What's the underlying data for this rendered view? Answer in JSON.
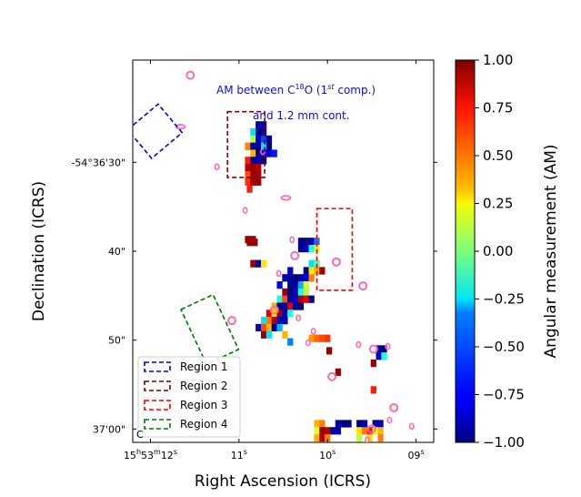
{
  "chart_data": {
    "type": "heatmap",
    "title": "",
    "xlabel": "Right Ascension (ICRS)",
    "ylabel": "Declination (ICRS)",
    "x_ticks": [
      {
        "text": "15h53m12s",
        "sup1": "h",
        "sup2": "m",
        "sup3": "s",
        "pre": "15",
        "m": "53",
        "s": "12",
        "sec": 12
      },
      {
        "text": "11s",
        "pre": "11",
        "sec": 11
      },
      {
        "text": "10s",
        "pre": "10",
        "sec": 10
      },
      {
        "text": "09s",
        "pre": "09",
        "sec": 9
      }
    ],
    "y_ticks": [
      {
        "text": "-54°36'30\"",
        "dec_sec": 30
      },
      {
        "text": "40\"",
        "dec_sec": 40
      },
      {
        "text": "50\"",
        "dec_sec": 50
      },
      {
        "text": "37'00\"",
        "dec_sec": 60
      }
    ],
    "xlim_sec": [
      12.2,
      8.8
    ],
    "ylim_decsec": [
      18.5,
      61.5
    ],
    "colorbar": {
      "label": "Angular measurement (AM)",
      "range": [
        -1.0,
        1.0
      ],
      "ticks": [
        "1.00",
        "0.75",
        "0.50",
        "0.25",
        "0.00",
        "−0.25",
        "−0.50",
        "−0.75",
        "−1.00"
      ],
      "colormap": "jet"
    },
    "annotation": {
      "line1_prefix": "AM between C",
      "line1_sup": "18",
      "line1_mid": "O (1",
      "line1_sup2": "st",
      "line1_suffix": " comp.)",
      "line2": "and 1.2 mm cont."
    },
    "legend": {
      "position": "lower-left",
      "entries": [
        {
          "label": "Region 1",
          "color": "#0000dd"
        },
        {
          "label": "Region 2",
          "color": "#800000"
        },
        {
          "label": "Region 3",
          "color": "#ee0000"
        },
        {
          "label": "Region 4",
          "color": "#007700"
        }
      ]
    },
    "beam_label": "C",
    "pixels": [
      {
        "ra": 10.78,
        "dec": 25.8,
        "am": -0.9
      },
      {
        "ra": 10.72,
        "dec": 25.8,
        "am": -0.95
      },
      {
        "ra": 10.84,
        "dec": 26.6,
        "am": -0.3
      },
      {
        "ra": 10.78,
        "dec": 26.6,
        "am": -1.0
      },
      {
        "ra": 10.72,
        "dec": 26.6,
        "am": -0.9
      },
      {
        "ra": 10.84,
        "dec": 27.4,
        "am": 0.1
      },
      {
        "ra": 10.78,
        "dec": 27.4,
        "am": -0.85
      },
      {
        "ra": 10.72,
        "dec": 27.4,
        "am": -0.6
      },
      {
        "ra": 10.66,
        "dec": 27.4,
        "am": -0.95
      },
      {
        "ra": 10.9,
        "dec": 28.2,
        "am": 0.5
      },
      {
        "ra": 10.84,
        "dec": 28.2,
        "am": -0.9
      },
      {
        "ra": 10.78,
        "dec": 28.2,
        "am": -0.95
      },
      {
        "ra": 10.72,
        "dec": 28.2,
        "am": -0.3
      },
      {
        "ra": 10.66,
        "dec": 28.2,
        "am": -1.0
      },
      {
        "ra": 10.84,
        "dec": 29.0,
        "am": 0.4
      },
      {
        "ra": 10.78,
        "dec": 29.0,
        "am": -1.0
      },
      {
        "ra": 10.72,
        "dec": 29.0,
        "am": -0.8
      },
      {
        "ra": 10.66,
        "dec": 29.0,
        "am": -0.85
      },
      {
        "ra": 10.6,
        "dec": 29.0,
        "am": -0.7
      },
      {
        "ra": 10.9,
        "dec": 29.8,
        "am": 0.7
      },
      {
        "ra": 10.84,
        "dec": 29.8,
        "am": -0.95
      },
      {
        "ra": 10.78,
        "dec": 29.8,
        "am": -0.9
      },
      {
        "ra": 10.72,
        "dec": 29.8,
        "am": -1.0
      },
      {
        "ra": 10.9,
        "dec": 30.6,
        "am": 0.9
      },
      {
        "ra": 10.84,
        "dec": 30.6,
        "am": 0.95
      },
      {
        "ra": 10.78,
        "dec": 30.6,
        "am": 0.9
      },
      {
        "ra": 10.9,
        "dec": 31.4,
        "am": 0.6
      },
      {
        "ra": 10.84,
        "dec": 31.4,
        "am": 0.95
      },
      {
        "ra": 10.78,
        "dec": 31.4,
        "am": 0.92
      },
      {
        "ra": 10.9,
        "dec": 32.2,
        "am": 0.65
      },
      {
        "ra": 10.9,
        "dec": 38.7,
        "am": 0.95
      },
      {
        "ra": 10.84,
        "dec": 38.7,
        "am": 0.95
      },
      {
        "ra": 10.3,
        "dec": 38.9,
        "am": -0.95
      },
      {
        "ra": 10.24,
        "dec": 38.9,
        "am": -1.0
      },
      {
        "ra": 10.18,
        "dec": 38.9,
        "am": -0.9
      },
      {
        "ra": 10.12,
        "dec": 38.9,
        "am": -0.5
      },
      {
        "ra": 10.3,
        "dec": 39.7,
        "am": -1.0
      },
      {
        "ra": 10.24,
        "dec": 39.7,
        "am": -0.85
      },
      {
        "ra": 10.18,
        "dec": 39.7,
        "am": -0.2
      },
      {
        "ra": 10.12,
        "dec": 39.7,
        "am": 0.2
      },
      {
        "ra": 10.84,
        "dec": 41.4,
        "am": 0.95
      },
      {
        "ra": 10.78,
        "dec": 41.4,
        "am": -0.9
      },
      {
        "ra": 10.72,
        "dec": 41.4,
        "am": 0.3
      },
      {
        "ra": 10.18,
        "dec": 41.4,
        "am": -0.3
      },
      {
        "ra": 10.12,
        "dec": 41.4,
        "am": -0.1
      },
      {
        "ra": 10.42,
        "dec": 42.2,
        "am": -0.85
      },
      {
        "ra": 10.24,
        "dec": 42.2,
        "am": -1.0
      },
      {
        "ra": 10.18,
        "dec": 42.2,
        "am": 0.3
      },
      {
        "ra": 10.12,
        "dec": 42.2,
        "am": 0.4
      },
      {
        "ra": 10.06,
        "dec": 42.2,
        "am": 0.95
      },
      {
        "ra": 10.48,
        "dec": 43.0,
        "am": -0.9
      },
      {
        "ra": 10.42,
        "dec": 43.0,
        "am": -0.95
      },
      {
        "ra": 10.36,
        "dec": 43.0,
        "am": -1.0
      },
      {
        "ra": 10.3,
        "dec": 43.0,
        "am": -0.95
      },
      {
        "ra": 10.24,
        "dec": 43.0,
        "am": -0.8
      },
      {
        "ra": 10.18,
        "dec": 43.0,
        "am": 0.5
      },
      {
        "ra": 10.54,
        "dec": 43.8,
        "am": -0.8
      },
      {
        "ra": 10.42,
        "dec": 43.8,
        "am": -1.0
      },
      {
        "ra": 10.36,
        "dec": 43.8,
        "am": -0.95
      },
      {
        "ra": 10.3,
        "dec": 43.8,
        "am": -0.4
      },
      {
        "ra": 10.24,
        "dec": 43.8,
        "am": 0.2
      },
      {
        "ra": 10.48,
        "dec": 44.6,
        "am": 0.95
      },
      {
        "ra": 10.42,
        "dec": 44.6,
        "am": -1.0
      },
      {
        "ra": 10.36,
        "dec": 44.6,
        "am": -0.9
      },
      {
        "ra": 10.3,
        "dec": 44.6,
        "am": -0.2
      },
      {
        "ra": 10.24,
        "dec": 44.6,
        "am": 0.1
      },
      {
        "ra": 10.54,
        "dec": 45.4,
        "am": -0.2
      },
      {
        "ra": 10.48,
        "dec": 45.4,
        "am": 0.6
      },
      {
        "ra": 10.42,
        "dec": 45.4,
        "am": -0.95
      },
      {
        "ra": 10.36,
        "dec": 45.4,
        "am": -0.85
      },
      {
        "ra": 10.3,
        "dec": 45.4,
        "am": 0.9
      },
      {
        "ra": 10.24,
        "dec": 45.4,
        "am": 0.8
      },
      {
        "ra": 10.18,
        "dec": 45.4,
        "am": -0.95
      },
      {
        "ra": 10.6,
        "dec": 46.2,
        "am": 0.4
      },
      {
        "ra": 10.54,
        "dec": 46.2,
        "am": -1.0
      },
      {
        "ra": 10.48,
        "dec": 46.2,
        "am": -0.9
      },
      {
        "ra": 10.42,
        "dec": 46.2,
        "am": 0.8
      },
      {
        "ra": 10.36,
        "dec": 46.2,
        "am": -0.95
      },
      {
        "ra": 10.3,
        "dec": 46.2,
        "am": -1.0
      },
      {
        "ra": 10.66,
        "dec": 47.0,
        "am": 0.8
      },
      {
        "ra": 10.6,
        "dec": 47.0,
        "am": 0.3
      },
      {
        "ra": 10.54,
        "dec": 47.0,
        "am": 0.95
      },
      {
        "ra": 10.48,
        "dec": 47.0,
        "am": -0.9
      },
      {
        "ra": 10.42,
        "dec": 47.0,
        "am": -0.2
      },
      {
        "ra": 10.72,
        "dec": 47.8,
        "am": -0.3
      },
      {
        "ra": 10.66,
        "dec": 47.8,
        "am": 0.5
      },
      {
        "ra": 10.6,
        "dec": 47.8,
        "am": 0.9
      },
      {
        "ra": 10.54,
        "dec": 47.8,
        "am": -0.85
      },
      {
        "ra": 10.48,
        "dec": 47.8,
        "am": -0.9
      },
      {
        "ra": 10.78,
        "dec": 48.6,
        "am": -0.9
      },
      {
        "ra": 10.72,
        "dec": 48.6,
        "am": 0.6
      },
      {
        "ra": 10.66,
        "dec": 48.6,
        "am": 0.4
      },
      {
        "ra": 10.6,
        "dec": 48.6,
        "am": -0.95
      },
      {
        "ra": 10.54,
        "dec": 48.6,
        "am": -0.4
      },
      {
        "ra": 10.72,
        "dec": 49.4,
        "am": 0.95
      },
      {
        "ra": 10.66,
        "dec": 49.4,
        "am": -0.3
      },
      {
        "ra": 10.48,
        "dec": 49.4,
        "am": 0.4
      },
      {
        "ra": 10.18,
        "dec": 49.8,
        "am": 0.45
      },
      {
        "ra": 10.12,
        "dec": 49.8,
        "am": 0.55
      },
      {
        "ra": 10.06,
        "dec": 49.8,
        "am": 0.6
      },
      {
        "ra": 10.0,
        "dec": 49.8,
        "am": 0.65
      },
      {
        "ra": 10.42,
        "dec": 50.2,
        "am": -0.5
      },
      {
        "ra": 9.98,
        "dec": 51.2,
        "am": 0.95
      },
      {
        "ra": 9.42,
        "dec": 51.0,
        "am": -0.95
      },
      {
        "ra": 9.36,
        "dec": 51.0,
        "am": -1.0
      },
      {
        "ra": 9.42,
        "dec": 51.8,
        "am": -0.9
      },
      {
        "ra": 9.36,
        "dec": 51.8,
        "am": -0.2
      },
      {
        "ra": 9.48,
        "dec": 52.6,
        "am": 0.95
      },
      {
        "ra": 9.48,
        "dec": 55.6,
        "am": 0.7
      },
      {
        "ra": 10.12,
        "dec": 59.4,
        "am": 0.4
      },
      {
        "ra": 10.06,
        "dec": 59.4,
        "am": 0.5
      },
      {
        "ra": 9.88,
        "dec": 59.4,
        "am": -0.9
      },
      {
        "ra": 9.82,
        "dec": 59.4,
        "am": -1.0
      },
      {
        "ra": 9.76,
        "dec": 59.4,
        "am": -1.0
      },
      {
        "ra": 10.12,
        "dec": 60.2,
        "am": 0.2
      },
      {
        "ra": 10.06,
        "dec": 60.2,
        "am": 0.95
      },
      {
        "ra": 10.0,
        "dec": 60.2,
        "am": 0.9
      },
      {
        "ra": 9.94,
        "dec": 60.2,
        "am": -0.95
      },
      {
        "ra": 9.88,
        "dec": 60.2,
        "am": -0.9
      },
      {
        "ra": 10.12,
        "dec": 61.0,
        "am": 0.4
      },
      {
        "ra": 10.06,
        "dec": 61.0,
        "am": 0.9
      },
      {
        "ra": 10.0,
        "dec": 61.0,
        "am": 0.5
      },
      {
        "ra": 9.64,
        "dec": 59.4,
        "am": -1.0
      },
      {
        "ra": 9.58,
        "dec": 59.4,
        "am": -0.9
      },
      {
        "ra": 9.46,
        "dec": 59.4,
        "am": -0.95
      },
      {
        "ra": 9.4,
        "dec": 59.4,
        "am": -0.9
      },
      {
        "ra": 9.64,
        "dec": 60.2,
        "am": 0.3
      },
      {
        "ra": 9.58,
        "dec": 60.2,
        "am": 0.5
      },
      {
        "ra": 9.52,
        "dec": 60.2,
        "am": 0.7
      },
      {
        "ra": 9.46,
        "dec": 60.2,
        "am": 0.2
      },
      {
        "ra": 9.4,
        "dec": 60.2,
        "am": 0.4
      },
      {
        "ra": 9.64,
        "dec": 61.0,
        "am": 0.1
      },
      {
        "ra": 9.52,
        "dec": 61.0,
        "am": 0.3
      },
      {
        "ra": 9.4,
        "dec": 61.0,
        "am": 0.5
      },
      {
        "ra": 10.88,
        "dec": 39.0,
        "am": 0.95
      },
      {
        "ra": 10.82,
        "dec": 39.0,
        "am": 0.95
      },
      {
        "ra": 10.88,
        "dec": 33.0,
        "am": 0.7
      },
      {
        "ra": 10.78,
        "dec": 32.2,
        "am": 0.95
      },
      {
        "ra": 10.84,
        "dec": 32.2,
        "am": 0.93
      },
      {
        "ra": 9.88,
        "dec": 53.6,
        "am": 0.95
      }
    ],
    "regions": [
      {
        "name": "Region 1",
        "color": "#0000dd",
        "ra_c": 11.95,
        "dec_c": 26.5,
        "w": 0.45,
        "h": 4.2,
        "angle": -40
      },
      {
        "name": "Region 2",
        "color": "#800000",
        "ra_c": 10.92,
        "dec_c": 28.0,
        "w": 0.42,
        "h": 7.4,
        "angle": 0
      },
      {
        "name": "Region 3",
        "color": "#ee0000",
        "ra_c": 9.92,
        "dec_c": 39.8,
        "w": 0.4,
        "h": 9.2,
        "angle": 0
      },
      {
        "name": "Region 4",
        "color": "#007700",
        "ra_c": 11.33,
        "dec_c": 48.8,
        "w": 0.4,
        "h": 6.8,
        "angle": -25
      }
    ],
    "contours": [
      {
        "ra": 11.55,
        "dec": 20.2,
        "r": 1
      },
      {
        "ra": 11.66,
        "dec": 26.0,
        "r": 0,
        "ellipse": true
      },
      {
        "ra": 11.25,
        "dec": 30.5,
        "r": 0
      },
      {
        "ra": 10.73,
        "dec": 28.8,
        "r": 0
      },
      {
        "ra": 10.93,
        "dec": 35.4,
        "r": 0
      },
      {
        "ra": 10.47,
        "dec": 34.0,
        "r": 0,
        "ellipse": true
      },
      {
        "ra": 10.4,
        "dec": 38.7,
        "r": 0
      },
      {
        "ra": 10.37,
        "dec": 40.5,
        "r": 1
      },
      {
        "ra": 9.9,
        "dec": 41.2,
        "r": 1
      },
      {
        "ra": 9.6,
        "dec": 43.9,
        "r": 1
      },
      {
        "ra": 10.55,
        "dec": 42.5,
        "r": 0
      },
      {
        "ra": 10.6,
        "dec": 46.6,
        "r": 1
      },
      {
        "ra": 11.08,
        "dec": 47.8,
        "r": 1
      },
      {
        "ra": 10.33,
        "dec": 47.5,
        "r": 0
      },
      {
        "ra": 10.16,
        "dec": 49.0,
        "r": 0
      },
      {
        "ra": 10.22,
        "dec": 50.3,
        "r": 0
      },
      {
        "ra": 9.65,
        "dec": 50.5,
        "r": 0
      },
      {
        "ra": 9.48,
        "dec": 51.0,
        "r": 1
      },
      {
        "ra": 9.32,
        "dec": 50.7,
        "r": 0
      },
      {
        "ra": 9.95,
        "dec": 54.1,
        "r": 1
      },
      {
        "ra": 9.25,
        "dec": 57.6,
        "r": 1
      },
      {
        "ra": 9.3,
        "dec": 59.0,
        "r": 0
      },
      {
        "ra": 9.5,
        "dec": 60.0,
        "r": 1
      },
      {
        "ra": 9.55,
        "dec": 61.2,
        "r": 0
      },
      {
        "ra": 9.05,
        "dec": 59.7,
        "r": 0
      }
    ]
  }
}
